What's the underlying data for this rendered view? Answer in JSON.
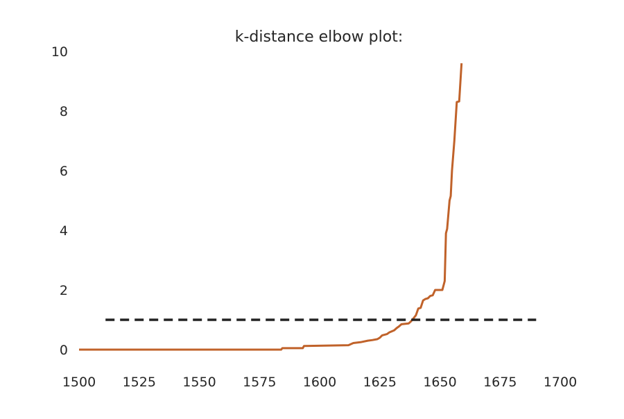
{
  "chart_data": {
    "type": "line",
    "title": "k-distance elbow plot:",
    "xlabel": "",
    "ylabel": "",
    "xlim": [
      1500,
      1700
    ],
    "ylim": [
      0,
      10
    ],
    "x_ticks": [
      1500,
      1525,
      1550,
      1575,
      1600,
      1625,
      1650,
      1675,
      1700
    ],
    "y_ticks": [
      0,
      2,
      4,
      6,
      8,
      10
    ],
    "grid": false,
    "series": [
      {
        "color": "#c0622a",
        "points": [
          [
            1500,
            0
          ],
          [
            1584,
            0
          ],
          [
            1584.5,
            0.05
          ],
          [
            1593,
            0.05
          ],
          [
            1593.5,
            0.12
          ],
          [
            1612,
            0.15
          ],
          [
            1614,
            0.22
          ],
          [
            1617,
            0.25
          ],
          [
            1620,
            0.3
          ],
          [
            1622,
            0.32
          ],
          [
            1624,
            0.35
          ],
          [
            1625,
            0.4
          ],
          [
            1626,
            0.48
          ],
          [
            1628,
            0.52
          ],
          [
            1629,
            0.58
          ],
          [
            1631,
            0.65
          ],
          [
            1632,
            0.72
          ],
          [
            1633,
            0.78
          ],
          [
            1634,
            0.85
          ],
          [
            1637,
            0.88
          ],
          [
            1638,
            0.95
          ],
          [
            1639,
            1.05
          ],
          [
            1640,
            1.15
          ],
          [
            1641,
            1.38
          ],
          [
            1642,
            1.4
          ],
          [
            1643,
            1.65
          ],
          [
            1644,
            1.7
          ],
          [
            1645,
            1.72
          ],
          [
            1646,
            1.8
          ],
          [
            1647,
            1.82
          ],
          [
            1648,
            2.0
          ],
          [
            1651,
            2.0
          ],
          [
            1652,
            2.3
          ],
          [
            1652.5,
            3.9
          ],
          [
            1653,
            4.05
          ],
          [
            1654,
            5.0
          ],
          [
            1654.5,
            5.15
          ],
          [
            1655,
            6.0
          ],
          [
            1656,
            7.0
          ],
          [
            1657,
            8.3
          ],
          [
            1658,
            8.32
          ],
          [
            1659,
            9.6
          ]
        ]
      },
      {
        "style": "dashed",
        "color": "#222222",
        "points": [
          [
            1511,
            1.0
          ],
          [
            1690,
            1.0
          ]
        ]
      }
    ]
  }
}
